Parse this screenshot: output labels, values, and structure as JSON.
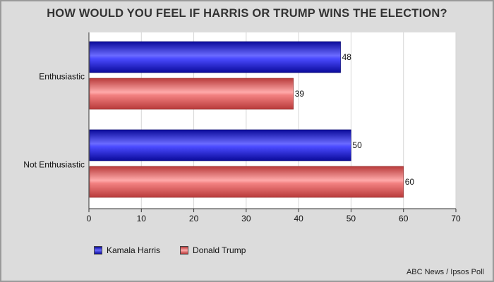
{
  "chart_data": {
    "type": "bar",
    "orientation": "horizontal",
    "title": "HOW WOULD YOU FEEL IF HARRIS OR TRUMP WINS THE ELECTION?",
    "categories": [
      "Enthusiastic",
      "Not Enthusiastic"
    ],
    "series": [
      {
        "name": "Kamala Harris",
        "values": [
          48,
          50
        ],
        "color": "#1010e0"
      },
      {
        "name": "Donald Trump",
        "values": [
          39,
          60
        ],
        "color": "#ee5555"
      }
    ],
    "xlim": [
      0,
      70
    ],
    "xticks": [
      0,
      10,
      20,
      30,
      40,
      50,
      60,
      70
    ],
    "grid": true,
    "legend_position": "bottom-left",
    "data_labels": true
  },
  "source": "ABC News / Ipsos Poll"
}
